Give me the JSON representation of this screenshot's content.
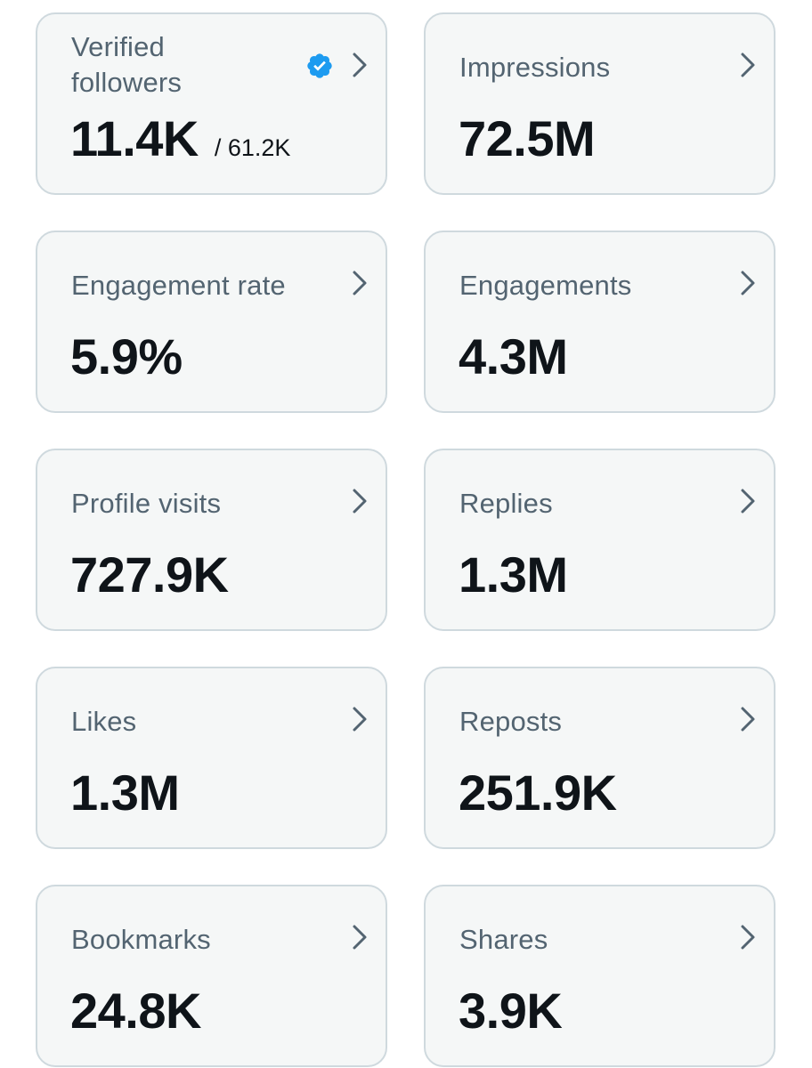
{
  "colors": {
    "card_background": "#f5f7f7",
    "card_border": "#cfd9de",
    "label": "#536471",
    "value": "#0f1419",
    "verified_badge": "#1d9bf0",
    "chevron": "#536471"
  },
  "metrics": [
    {
      "label": "Verified followers",
      "value": "11.4K",
      "sub": "/ 61.2K",
      "badge": "verified-badge-icon",
      "chevron": "chevron-right-icon"
    },
    {
      "label": "Impressions",
      "value": "72.5M",
      "chevron": "chevron-right-icon"
    },
    {
      "label": "Engagement rate",
      "value": "5.9%",
      "chevron": "chevron-right-icon"
    },
    {
      "label": "Engagements",
      "value": "4.3M",
      "chevron": "chevron-right-icon"
    },
    {
      "label": "Profile visits",
      "value": "727.9K",
      "chevron": "chevron-right-icon"
    },
    {
      "label": "Replies",
      "value": "1.3M",
      "chevron": "chevron-right-icon"
    },
    {
      "label": "Likes",
      "value": "1.3M",
      "chevron": "chevron-right-icon"
    },
    {
      "label": "Reposts",
      "value": "251.9K",
      "chevron": "chevron-right-icon"
    },
    {
      "label": "Bookmarks",
      "value": "24.8K",
      "chevron": "chevron-right-icon"
    },
    {
      "label": "Shares",
      "value": "3.9K",
      "chevron": "chevron-right-icon"
    }
  ]
}
